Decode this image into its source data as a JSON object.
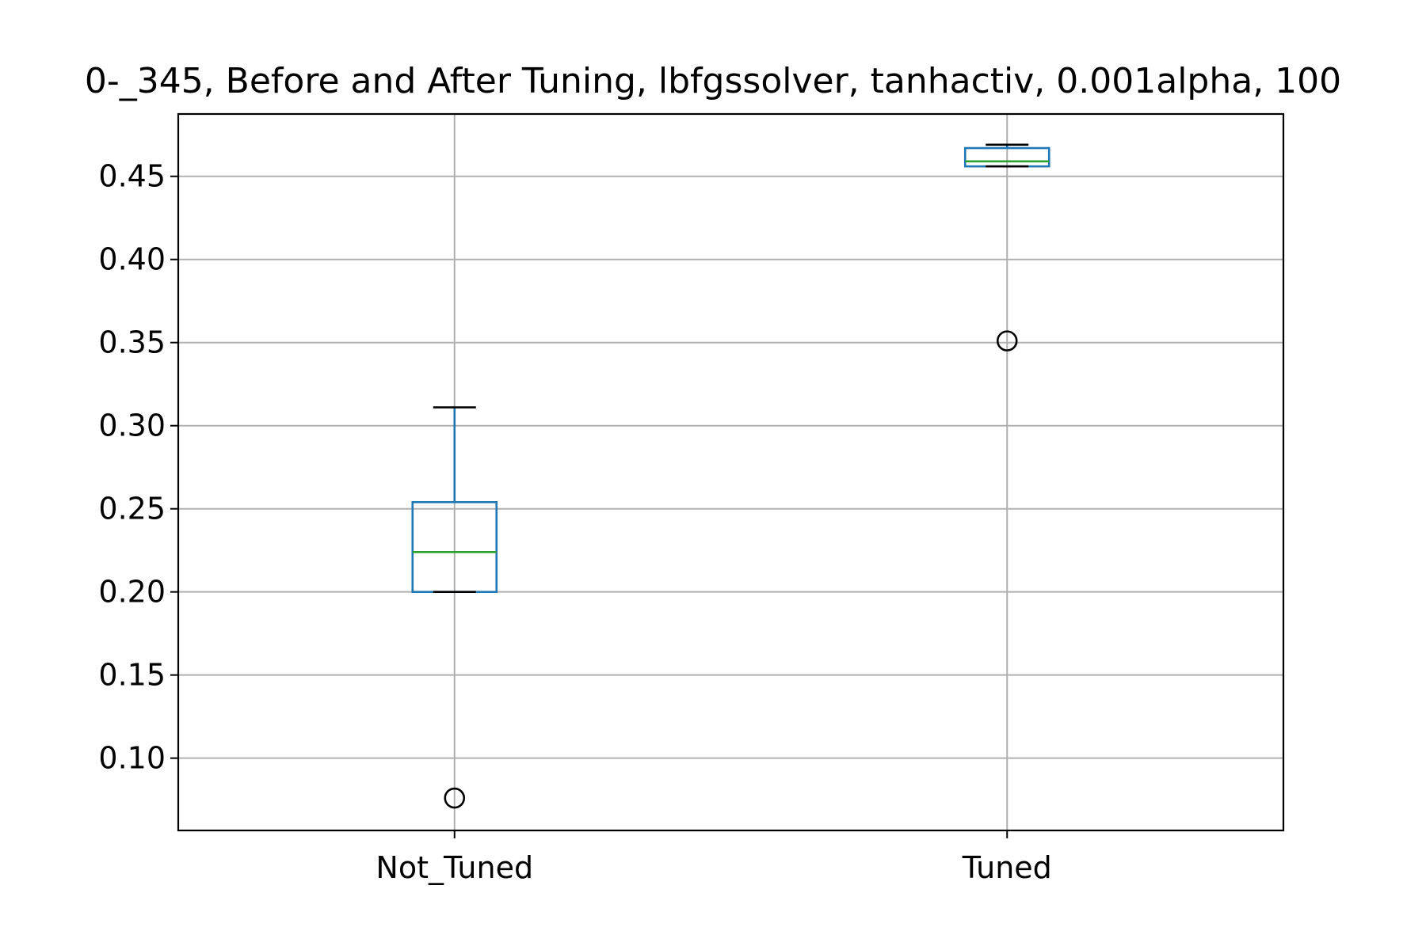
{
  "chart_data": {
    "type": "box",
    "title": "0-_345, Before and After Tuning, lbfgssolver, tanhactiv, 0.001alpha, 100",
    "xlabel": "",
    "ylabel": "",
    "categories": [
      "Not_Tuned",
      "Tuned"
    ],
    "boxes": [
      {
        "name": "Not_Tuned",
        "whisker_low": 0.2,
        "q1": 0.2,
        "median": 0.224,
        "q3": 0.254,
        "whisker_high": 0.311,
        "outliers": [
          0.076
        ]
      },
      {
        "name": "Tuned",
        "whisker_low": 0.456,
        "q1": 0.456,
        "median": 0.459,
        "q3": 0.467,
        "whisker_high": 0.469,
        "outliers": [
          0.351
        ]
      }
    ],
    "ylim": [
      0.0565,
      0.4875
    ],
    "yticks": [
      0.1,
      0.15,
      0.2,
      0.25,
      0.3,
      0.35,
      0.4,
      0.45
    ],
    "ytick_labels": [
      "0.10",
      "0.15",
      "0.20",
      "0.25",
      "0.30",
      "0.35",
      "0.40",
      "0.45"
    ],
    "grid": true,
    "colors": {
      "box": "#1f77b4",
      "median": "#2ca02c",
      "caps": "#000000",
      "outlier": "#000000",
      "grid": "#b0b0b0"
    }
  }
}
